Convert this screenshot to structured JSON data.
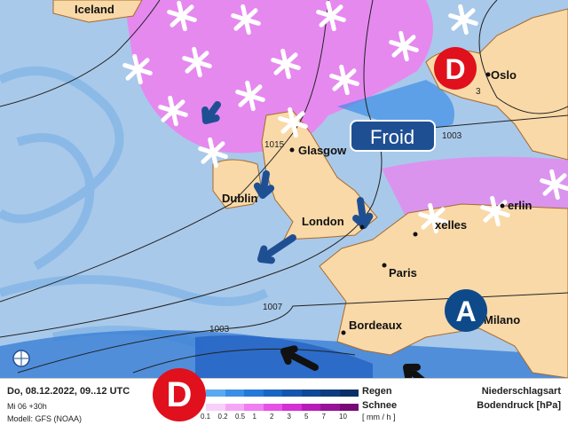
{
  "map": {
    "cities": [
      "Iceland",
      "Oslo",
      "Glasgow",
      "Dublin",
      "London",
      "erlin",
      "xelles",
      "Paris",
      "Bordeaux",
      "Milano"
    ],
    "isobar_labels": [
      "1015",
      "3",
      "1003",
      "1007",
      "1003"
    ],
    "label_froid": "Froid",
    "pressure_markers": {
      "low": "D",
      "high": "A"
    },
    "colors": {
      "low": "#e0101c",
      "high": "#0e4a8a",
      "froid": "#1f4f93",
      "land": "#f9d9a8",
      "sea": "#a9c9ea",
      "snow": "#f07ef0",
      "rain": "#3d8ee6"
    },
    "icons": [
      "snowflake-icon",
      "wind-arrow-icon",
      "globe-icon"
    ]
  },
  "footer": {
    "date": "Do, 08.12.2022, 09..12 UTC",
    "run": "Mi 06 +30h",
    "model": "Modell: GFS (NOAA)",
    "rain_label": "Regen",
    "snow_label": "Schnee",
    "unit": "[ mm / h ]",
    "ticks": [
      "0.1",
      "0.2",
      "0.5",
      "1",
      "2",
      "3",
      "5",
      "7",
      "10"
    ],
    "title1": "Niederschlagsart",
    "title2": "Bodendruck [hPa]",
    "low_marker": "D",
    "rain_colors": [
      "#5aa8f0",
      "#3a8ee6",
      "#2478d8",
      "#1866c4",
      "#1456ae",
      "#0f4896",
      "#0c3c7e",
      "#0a3068"
    ],
    "snow_colors": [
      "#f9d0f9",
      "#f6a6f6",
      "#f07ef0",
      "#e652e6",
      "#d430d4",
      "#b81cb8",
      "#981298",
      "#780a78"
    ]
  }
}
